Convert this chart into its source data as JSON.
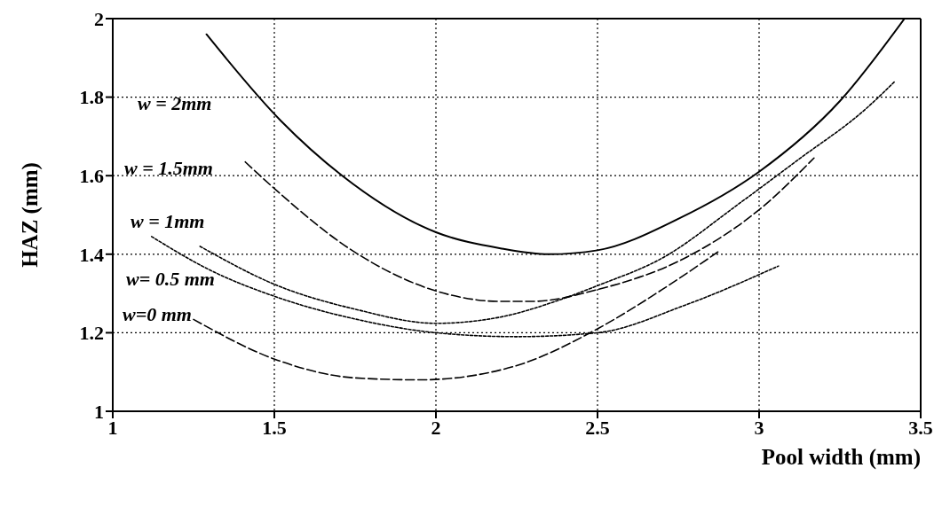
{
  "chart_data": {
    "type": "line",
    "xlabel": "Pool width (mm)",
    "ylabel": "HAZ (mm)",
    "xlim": [
      1,
      3.5
    ],
    "xticks": [
      1,
      1.5,
      2,
      2.5,
      3,
      3.5
    ],
    "ylim": [
      1,
      2
    ],
    "yticks": [
      1,
      1.2,
      1.4,
      1.6,
      1.8,
      2
    ],
    "grid": true,
    "marker": "none",
    "series": [
      {
        "name": "w = 2mm",
        "color": "#000000",
        "line_style": "solid",
        "x": [
          1.29,
          1.52,
          1.71,
          2.0,
          2.2,
          2.35,
          2.5,
          2.75,
          3.0,
          3.25,
          3.45
        ],
        "values": [
          1.96,
          1.74,
          1.6,
          1.456,
          1.415,
          1.4,
          1.41,
          1.49,
          1.61,
          1.79,
          2.0
        ]
      },
      {
        "name": "w = 1.5mm",
        "color": "#000000",
        "line_style": "dashed",
        "x": [
          1.41,
          1.51,
          1.74,
          2.08,
          2.19,
          2.3,
          2.5,
          2.77,
          3.01,
          3.17
        ],
        "values": [
          1.635,
          1.56,
          1.41,
          1.29,
          1.28,
          1.28,
          1.31,
          1.39,
          1.52,
          1.645
        ]
      },
      {
        "name": "w = 1mm",
        "color": "#000000",
        "line_style": "dotted",
        "x": [
          1.27,
          1.51,
          1.75,
          2.0,
          2.2,
          2.37,
          2.5,
          2.7,
          2.94,
          3.12,
          3.33,
          3.42
        ],
        "values": [
          1.42,
          1.32,
          1.26,
          1.224,
          1.24,
          1.28,
          1.32,
          1.39,
          1.53,
          1.64,
          1.77,
          1.84
        ]
      },
      {
        "name": "w= 0.5 mm",
        "color": "#000000",
        "line_style": "dotted",
        "x": [
          1.12,
          1.3,
          1.51,
          1.75,
          2.0,
          2.25,
          2.5,
          2.77,
          3.06
        ],
        "values": [
          1.445,
          1.36,
          1.29,
          1.235,
          1.2,
          1.19,
          1.2,
          1.27,
          1.37
        ]
      },
      {
        "name": "w=0 mm",
        "color": "#000000",
        "line_style": "dashed",
        "x": [
          1.25,
          1.51,
          1.75,
          1.95,
          2.24,
          2.5,
          2.7,
          2.88
        ],
        "values": [
          1.234,
          1.13,
          1.085,
          1.08,
          1.114,
          1.21,
          1.31,
          1.41
        ]
      }
    ]
  }
}
